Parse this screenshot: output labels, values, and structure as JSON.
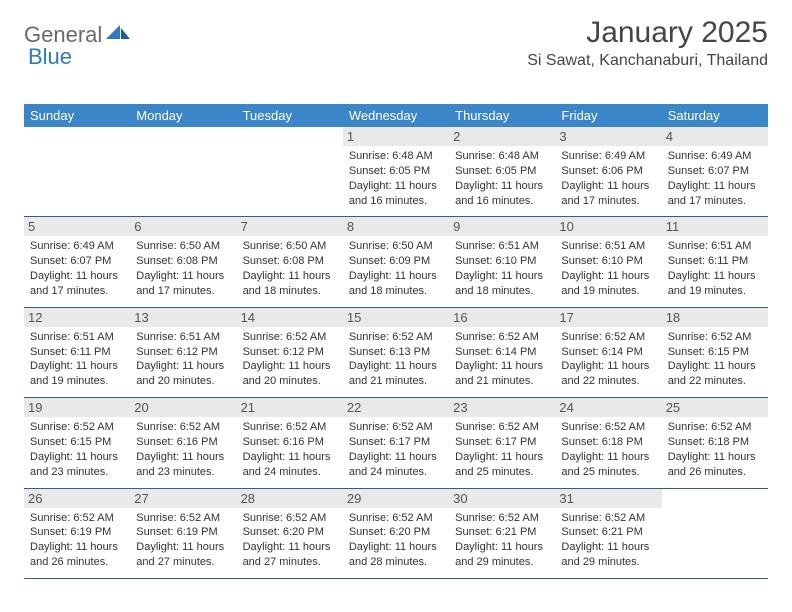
{
  "logo": {
    "part1": "General",
    "part2": "Blue"
  },
  "monthTitle": "January 2025",
  "location": "Si Sawat, Kanchanaburi, Thailand",
  "colors": {
    "headerBg": "#3b86c8",
    "headerText": "#ffffff",
    "dayStripBg": "#e9e9e9",
    "rowBorder": "#2f5f8f",
    "logoBlue": "#2f78c2",
    "logoGray": "#6a6a6a",
    "bodyText": "#333333",
    "pageBg": "#ffffff"
  },
  "typography": {
    "titleFontSize": 30,
    "locationFontSize": 16,
    "headerFontSize": 13,
    "dayNumFontSize": 13,
    "cellFontSize": 11
  },
  "dayHeaders": [
    "Sunday",
    "Monday",
    "Tuesday",
    "Wednesday",
    "Thursday",
    "Friday",
    "Saturday"
  ],
  "weeks": [
    [
      null,
      null,
      null,
      {
        "n": "1",
        "sr": "Sunrise: 6:48 AM",
        "ss": "Sunset: 6:05 PM",
        "d1": "Daylight: 11 hours",
        "d2": "and 16 minutes."
      },
      {
        "n": "2",
        "sr": "Sunrise: 6:48 AM",
        "ss": "Sunset: 6:05 PM",
        "d1": "Daylight: 11 hours",
        "d2": "and 16 minutes."
      },
      {
        "n": "3",
        "sr": "Sunrise: 6:49 AM",
        "ss": "Sunset: 6:06 PM",
        "d1": "Daylight: 11 hours",
        "d2": "and 17 minutes."
      },
      {
        "n": "4",
        "sr": "Sunrise: 6:49 AM",
        "ss": "Sunset: 6:07 PM",
        "d1": "Daylight: 11 hours",
        "d2": "and 17 minutes."
      }
    ],
    [
      {
        "n": "5",
        "sr": "Sunrise: 6:49 AM",
        "ss": "Sunset: 6:07 PM",
        "d1": "Daylight: 11 hours",
        "d2": "and 17 minutes."
      },
      {
        "n": "6",
        "sr": "Sunrise: 6:50 AM",
        "ss": "Sunset: 6:08 PM",
        "d1": "Daylight: 11 hours",
        "d2": "and 17 minutes."
      },
      {
        "n": "7",
        "sr": "Sunrise: 6:50 AM",
        "ss": "Sunset: 6:08 PM",
        "d1": "Daylight: 11 hours",
        "d2": "and 18 minutes."
      },
      {
        "n": "8",
        "sr": "Sunrise: 6:50 AM",
        "ss": "Sunset: 6:09 PM",
        "d1": "Daylight: 11 hours",
        "d2": "and 18 minutes."
      },
      {
        "n": "9",
        "sr": "Sunrise: 6:51 AM",
        "ss": "Sunset: 6:10 PM",
        "d1": "Daylight: 11 hours",
        "d2": "and 18 minutes."
      },
      {
        "n": "10",
        "sr": "Sunrise: 6:51 AM",
        "ss": "Sunset: 6:10 PM",
        "d1": "Daylight: 11 hours",
        "d2": "and 19 minutes."
      },
      {
        "n": "11",
        "sr": "Sunrise: 6:51 AM",
        "ss": "Sunset: 6:11 PM",
        "d1": "Daylight: 11 hours",
        "d2": "and 19 minutes."
      }
    ],
    [
      {
        "n": "12",
        "sr": "Sunrise: 6:51 AM",
        "ss": "Sunset: 6:11 PM",
        "d1": "Daylight: 11 hours",
        "d2": "and 19 minutes."
      },
      {
        "n": "13",
        "sr": "Sunrise: 6:51 AM",
        "ss": "Sunset: 6:12 PM",
        "d1": "Daylight: 11 hours",
        "d2": "and 20 minutes."
      },
      {
        "n": "14",
        "sr": "Sunrise: 6:52 AM",
        "ss": "Sunset: 6:12 PM",
        "d1": "Daylight: 11 hours",
        "d2": "and 20 minutes."
      },
      {
        "n": "15",
        "sr": "Sunrise: 6:52 AM",
        "ss": "Sunset: 6:13 PM",
        "d1": "Daylight: 11 hours",
        "d2": "and 21 minutes."
      },
      {
        "n": "16",
        "sr": "Sunrise: 6:52 AM",
        "ss": "Sunset: 6:14 PM",
        "d1": "Daylight: 11 hours",
        "d2": "and 21 minutes."
      },
      {
        "n": "17",
        "sr": "Sunrise: 6:52 AM",
        "ss": "Sunset: 6:14 PM",
        "d1": "Daylight: 11 hours",
        "d2": "and 22 minutes."
      },
      {
        "n": "18",
        "sr": "Sunrise: 6:52 AM",
        "ss": "Sunset: 6:15 PM",
        "d1": "Daylight: 11 hours",
        "d2": "and 22 minutes."
      }
    ],
    [
      {
        "n": "19",
        "sr": "Sunrise: 6:52 AM",
        "ss": "Sunset: 6:15 PM",
        "d1": "Daylight: 11 hours",
        "d2": "and 23 minutes."
      },
      {
        "n": "20",
        "sr": "Sunrise: 6:52 AM",
        "ss": "Sunset: 6:16 PM",
        "d1": "Daylight: 11 hours",
        "d2": "and 23 minutes."
      },
      {
        "n": "21",
        "sr": "Sunrise: 6:52 AM",
        "ss": "Sunset: 6:16 PM",
        "d1": "Daylight: 11 hours",
        "d2": "and 24 minutes."
      },
      {
        "n": "22",
        "sr": "Sunrise: 6:52 AM",
        "ss": "Sunset: 6:17 PM",
        "d1": "Daylight: 11 hours",
        "d2": "and 24 minutes."
      },
      {
        "n": "23",
        "sr": "Sunrise: 6:52 AM",
        "ss": "Sunset: 6:17 PM",
        "d1": "Daylight: 11 hours",
        "d2": "and 25 minutes."
      },
      {
        "n": "24",
        "sr": "Sunrise: 6:52 AM",
        "ss": "Sunset: 6:18 PM",
        "d1": "Daylight: 11 hours",
        "d2": "and 25 minutes."
      },
      {
        "n": "25",
        "sr": "Sunrise: 6:52 AM",
        "ss": "Sunset: 6:18 PM",
        "d1": "Daylight: 11 hours",
        "d2": "and 26 minutes."
      }
    ],
    [
      {
        "n": "26",
        "sr": "Sunrise: 6:52 AM",
        "ss": "Sunset: 6:19 PM",
        "d1": "Daylight: 11 hours",
        "d2": "and 26 minutes."
      },
      {
        "n": "27",
        "sr": "Sunrise: 6:52 AM",
        "ss": "Sunset: 6:19 PM",
        "d1": "Daylight: 11 hours",
        "d2": "and 27 minutes."
      },
      {
        "n": "28",
        "sr": "Sunrise: 6:52 AM",
        "ss": "Sunset: 6:20 PM",
        "d1": "Daylight: 11 hours",
        "d2": "and 27 minutes."
      },
      {
        "n": "29",
        "sr": "Sunrise: 6:52 AM",
        "ss": "Sunset: 6:20 PM",
        "d1": "Daylight: 11 hours",
        "d2": "and 28 minutes."
      },
      {
        "n": "30",
        "sr": "Sunrise: 6:52 AM",
        "ss": "Sunset: 6:21 PM",
        "d1": "Daylight: 11 hours",
        "d2": "and 29 minutes."
      },
      {
        "n": "31",
        "sr": "Sunrise: 6:52 AM",
        "ss": "Sunset: 6:21 PM",
        "d1": "Daylight: 11 hours",
        "d2": "and 29 minutes."
      },
      null
    ]
  ]
}
